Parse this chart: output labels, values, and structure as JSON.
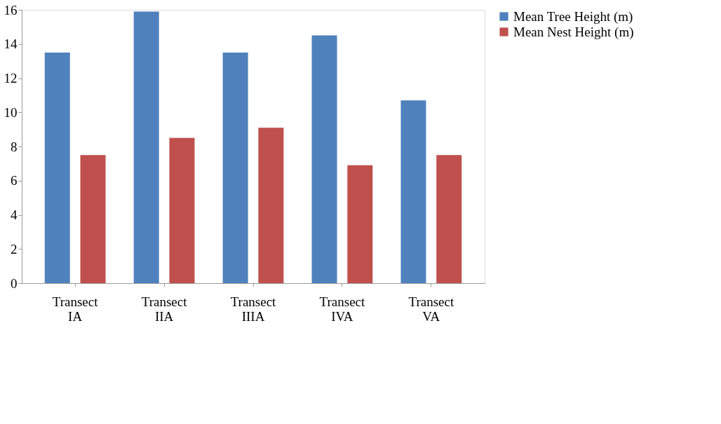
{
  "chart_data": {
    "type": "bar",
    "categories": [
      "Transect IA",
      "Transect IIA",
      "Transect IIIA",
      "Transect IVA",
      "Transect VA"
    ],
    "series": [
      {
        "name": "Mean Tree Height (m)",
        "color": "#4f81bd",
        "values": [
          13.5,
          15.9,
          13.5,
          14.5,
          10.7
        ]
      },
      {
        "name": "Mean Nest Height (m)",
        "color": "#c0504d",
        "values": [
          7.5,
          8.5,
          9.1,
          6.9,
          7.5
        ]
      }
    ],
    "ylim": [
      0,
      16
    ],
    "yticks": [
      0,
      2,
      4,
      6,
      8,
      10,
      12,
      14,
      16
    ],
    "grid": false,
    "legend": "right"
  }
}
